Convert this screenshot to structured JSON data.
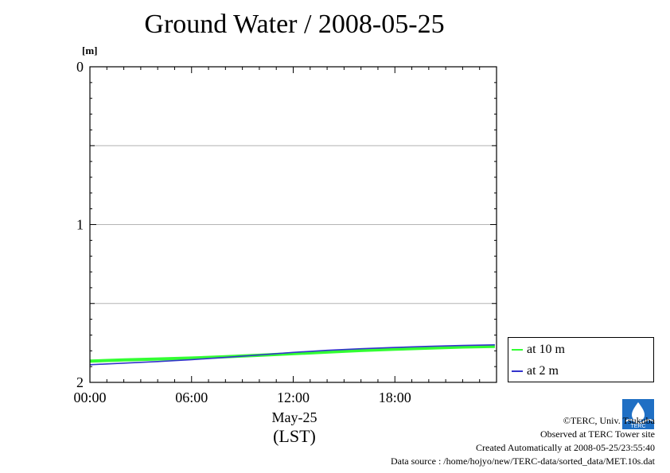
{
  "title": "Ground Water / 2008-05-25",
  "chart_data": {
    "type": "line",
    "title": "Ground Water / 2008-05-25",
    "ylabel": "[m]",
    "xlabel_date": "May-25",
    "xlabel_tz": "(LST)",
    "ylim": [
      0,
      2
    ],
    "y_inverted": true,
    "y_ticks": [
      "0",
      "1",
      "2"
    ],
    "y_minor_grid": [
      0.5,
      1.0,
      1.5
    ],
    "xlim_hours": [
      0,
      24
    ],
    "x_ticks": [
      "00:00",
      "06:00",
      "12:00",
      "18:00"
    ],
    "x_tick_hours": [
      0,
      6,
      12,
      18
    ],
    "grid": true,
    "legend_position": "right",
    "series": [
      {
        "name": "at 10 m",
        "color": "#33ff33",
        "x_hours": [
          0,
          2,
          4,
          6,
          8,
          10,
          12,
          14,
          16,
          18,
          20,
          22,
          23.9
        ],
        "values": [
          1.865,
          1.858,
          1.852,
          1.846,
          1.838,
          1.828,
          1.818,
          1.808,
          1.798,
          1.79,
          1.783,
          1.776,
          1.772
        ]
      },
      {
        "name": "at 2 m",
        "color": "#3333cc",
        "x_hours": [
          0,
          2,
          4,
          6,
          8,
          10,
          12,
          14,
          16,
          18,
          20,
          22,
          23.9
        ],
        "values": [
          1.888,
          1.878,
          1.868,
          1.856,
          1.842,
          1.826,
          1.81,
          1.797,
          1.787,
          1.779,
          1.772,
          1.766,
          1.762
        ]
      }
    ]
  },
  "credits": {
    "copyright": "©TERC, Univ. Tsukuba",
    "observed": "Observed at TERC Tower site",
    "created": "Created Automatically at 2008-05-25/23:55:40",
    "source": "Data source : /home/hojyo/new/TERC-data/sorted_data/MET.10s.dat"
  },
  "logo": {
    "name": "terc-logo-icon",
    "text": "TERC",
    "color": "#1f6fc4"
  }
}
